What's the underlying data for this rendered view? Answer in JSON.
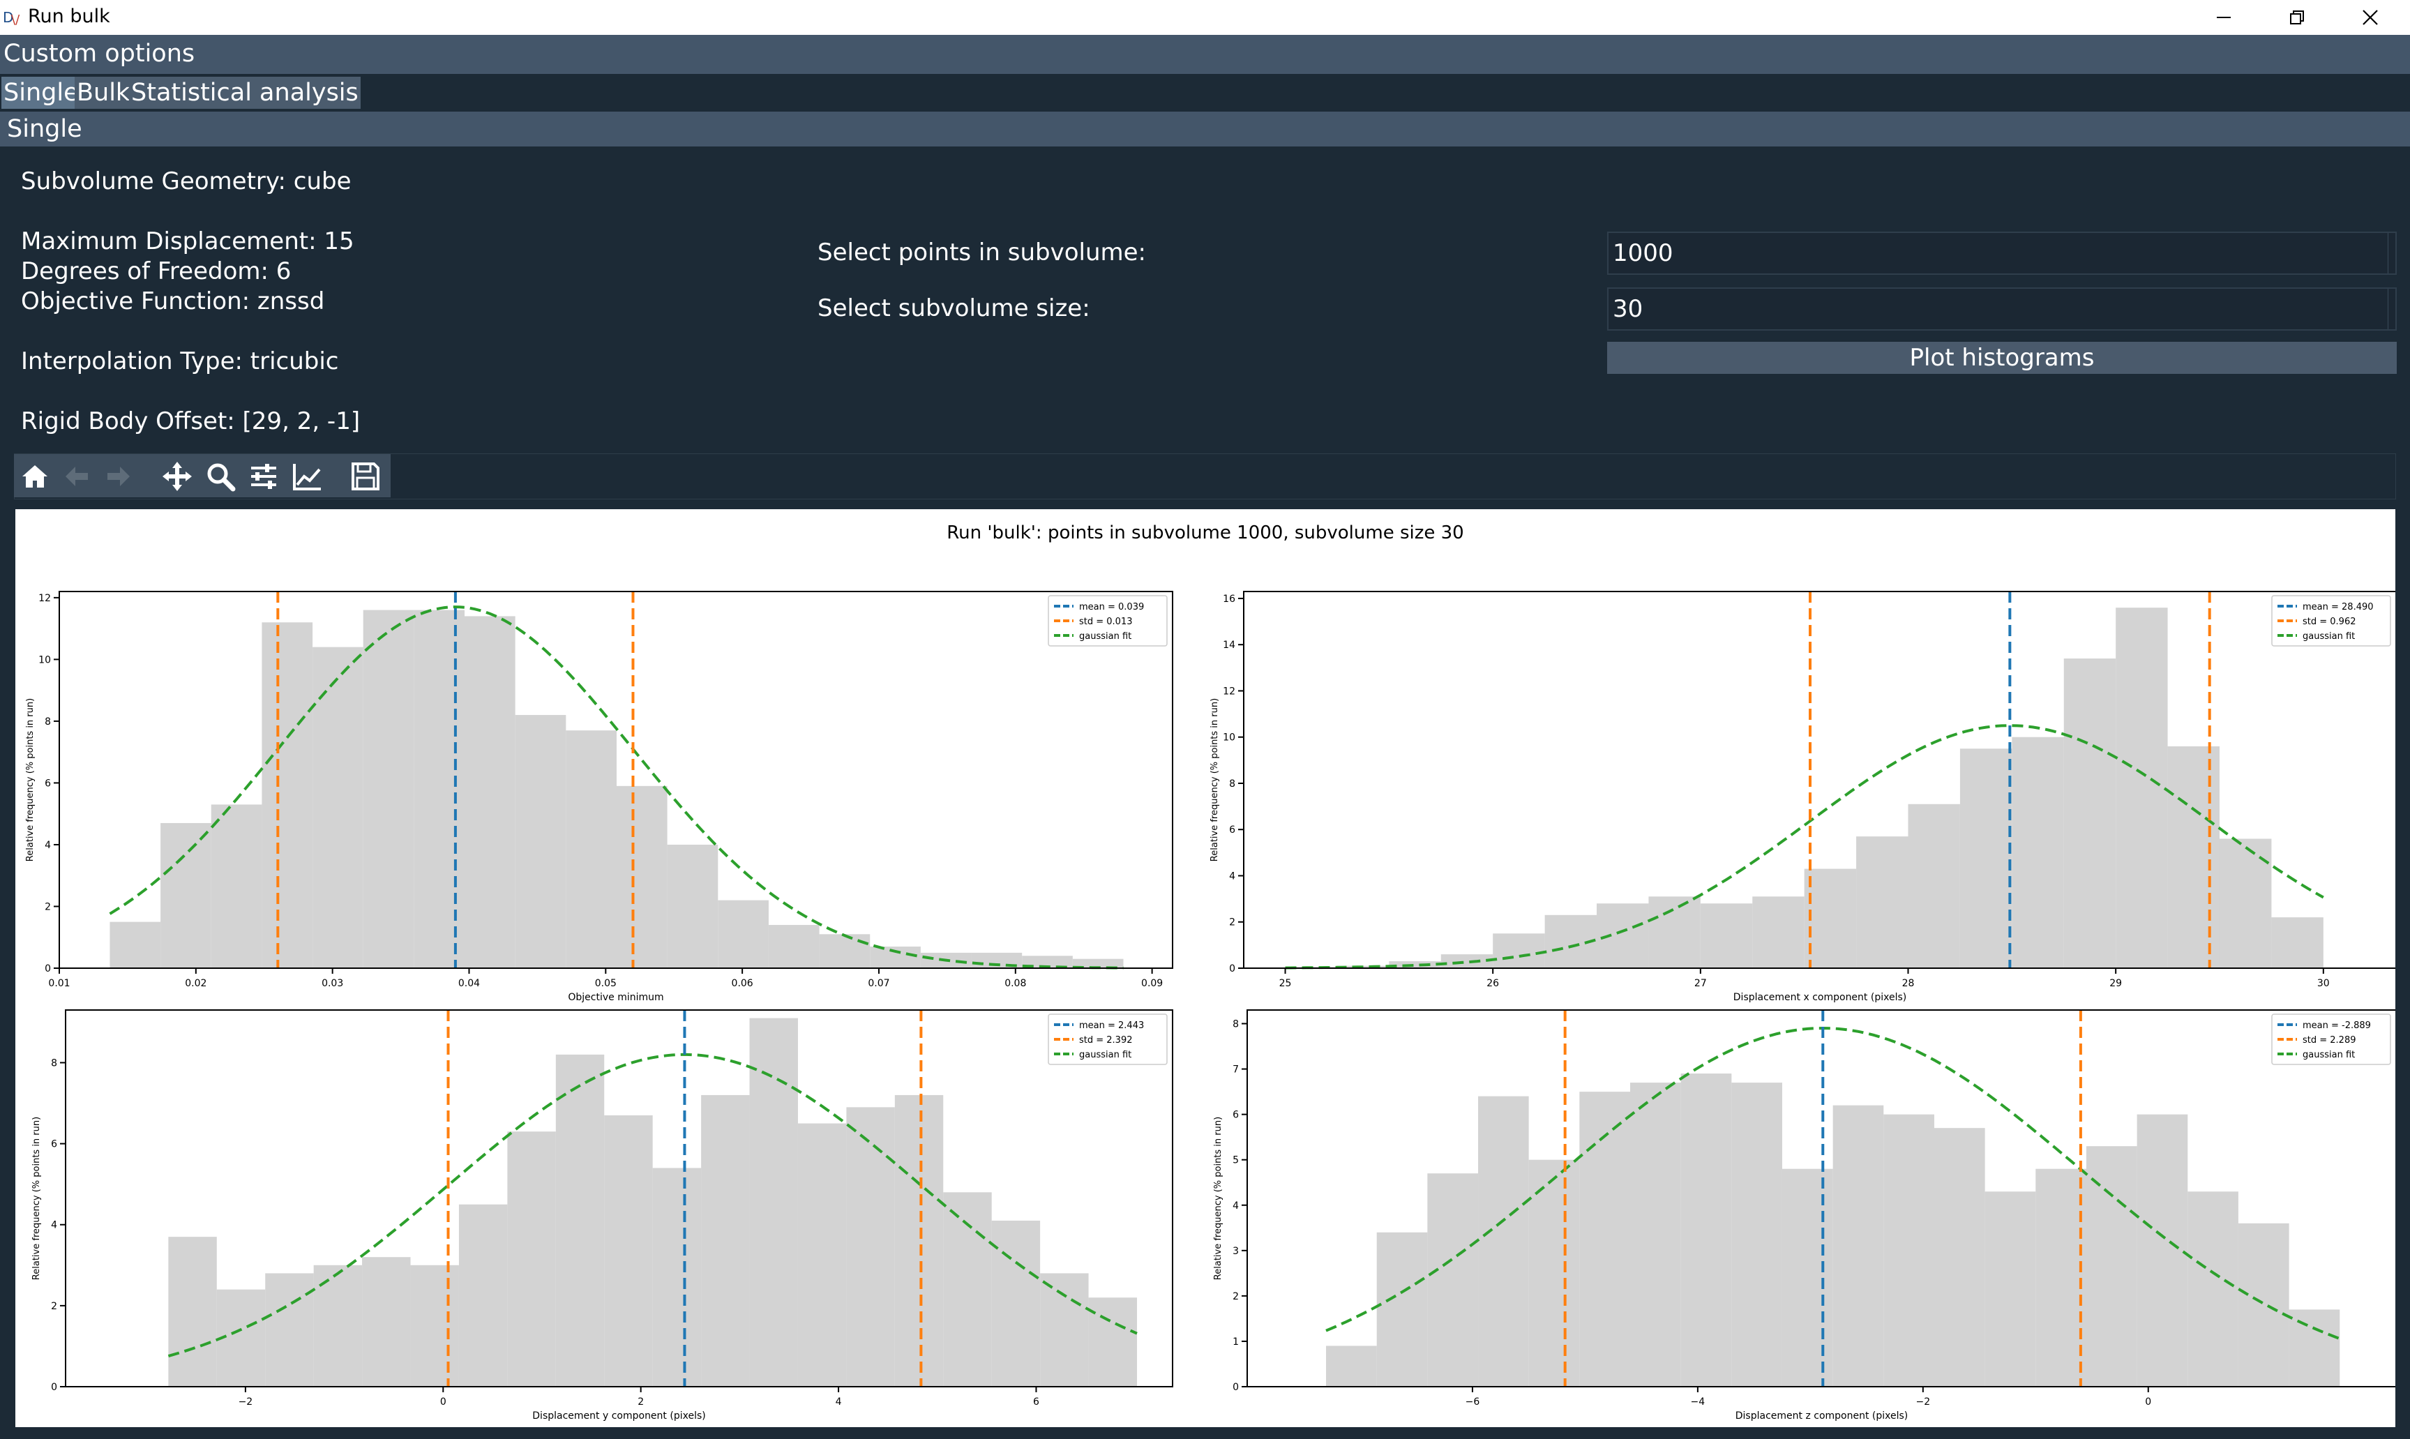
{
  "window": {
    "title": "Run bulk",
    "icon": "app-logo-icon",
    "controls": [
      "minimize-icon",
      "restore-icon",
      "close-icon"
    ]
  },
  "custom_options": {
    "label": "Custom options"
  },
  "tabs": [
    {
      "label": "Single",
      "active": true
    },
    {
      "label": "Bulk",
      "active": false
    },
    {
      "label": "Statistical analysis",
      "active": false
    }
  ],
  "section": {
    "label": "Single"
  },
  "info": {
    "geometry": "Subvolume Geometry: cube",
    "max_disp": "Maximum Displacement: 15",
    "dof": "Degrees of Freedom: 6",
    "objective": "Objective Function: znssd",
    "interp": "Interpolation Type: tricubic",
    "offset": "Rigid Body Offset: [29, 2, -1]"
  },
  "form": {
    "points_label": "Select points in subvolume:",
    "points_value": "1000",
    "size_label": "Select subvolume size:",
    "size_value": "30",
    "plot_button": "Plot histograms"
  },
  "toolbar": {
    "icons": [
      "home-icon",
      "back-arrow-icon",
      "forward-arrow-icon",
      "pan-icon",
      "zoom-icon",
      "configure-subplots-icon",
      "edit-axis-icon",
      "save-icon"
    ],
    "disabled": [
      "back-arrow-icon",
      "forward-arrow-icon"
    ]
  },
  "colors": {
    "hist": "#d3d3d3",
    "mean": "#1f77b4",
    "std": "#ff7f0e",
    "fit": "#2ca02c"
  },
  "chart_data": {
    "suptitle": "Run 'bulk': points in subvolume 1000, subvolume size 30",
    "legend_location": "upper right",
    "panels": [
      {
        "type": "bar",
        "xlabel": "Objective minimum",
        "ylabel": "Relative frequency (% points in run)",
        "xlim": [
          0.01,
          0.0915
        ],
        "ylim": [
          0,
          12.2
        ],
        "xticks": [
          0.01,
          0.02,
          0.03,
          0.04,
          0.05,
          0.06,
          0.07,
          0.08,
          0.09
        ],
        "xtick_labels": [
          "0.01",
          "0.02",
          "0.03",
          "0.04",
          "0.05",
          "0.06",
          "0.07",
          "0.08",
          "0.09"
        ],
        "yticks": [
          0,
          2,
          4,
          6,
          8,
          10,
          12
        ],
        "ytick_labels": [
          "0",
          "2",
          "4",
          "6",
          "8",
          "10",
          "12"
        ],
        "bin_edges": [
          0.0137,
          0.01741,
          0.02112,
          0.02483,
          0.02854,
          0.03225,
          0.03596,
          0.03967,
          0.04338,
          0.04709,
          0.0508,
          0.05451,
          0.05822,
          0.06193,
          0.06564,
          0.06935,
          0.07306,
          0.07677,
          0.08048,
          0.08419,
          0.0879
        ],
        "counts": [
          1.5,
          4.7,
          5.3,
          11.2,
          10.4,
          11.6,
          11.6,
          11.4,
          8.2,
          7.7,
          5.9,
          4.0,
          2.2,
          1.4,
          1.1,
          0.7,
          0.5,
          0.5,
          0.4,
          0.3
        ],
        "mean": 0.039,
        "std": 0.013,
        "fit_peak": 11.7,
        "legend": [
          "mean = 0.039",
          "std = 0.013",
          "gaussian fit"
        ]
      },
      {
        "type": "bar",
        "xlabel": "Displacement x component (pixels)",
        "ylabel": "Relative frequency (% points in run)",
        "xlim": [
          24.8,
          30.35
        ],
        "ylim": [
          0,
          16.3
        ],
        "xticks": [
          25,
          26,
          27,
          28,
          29,
          30
        ],
        "xtick_labels": [
          "25",
          "26",
          "27",
          "28",
          "29",
          "30"
        ],
        "yticks": [
          0,
          2,
          4,
          6,
          8,
          10,
          12,
          14,
          16
        ],
        "ytick_labels": [
          "0",
          "2",
          "4",
          "6",
          "8",
          "10",
          "12",
          "14",
          "16"
        ],
        "bin_edges": [
          25.0,
          25.25,
          25.5,
          25.75,
          26.0,
          26.25,
          26.5,
          26.75,
          27.0,
          27.25,
          27.5,
          27.75,
          28.0,
          28.25,
          28.5,
          28.75,
          29.0,
          29.25,
          29.5,
          29.75,
          30.0
        ],
        "counts": [
          0.05,
          0.1,
          0.3,
          0.6,
          1.5,
          2.3,
          2.8,
          3.1,
          2.8,
          3.1,
          4.3,
          5.7,
          7.1,
          9.5,
          10.0,
          13.4,
          15.6,
          9.6,
          5.6,
          2.2
        ],
        "mean": 28.49,
        "std": 0.962,
        "fit_peak": 10.5,
        "legend": [
          "mean = 28.490",
          "std = 0.962",
          "gaussian fit"
        ]
      },
      {
        "type": "bar",
        "xlabel": "Displacement y component (pixels)",
        "ylabel": "Relative frequency (% points in run)",
        "xlim": [
          -3.82,
          7.38
        ],
        "ylim": [
          0,
          9.3
        ],
        "xticks": [
          -2,
          0,
          2,
          4,
          6
        ],
        "xtick_labels": [
          "−2",
          "0",
          "2",
          "4",
          "6"
        ],
        "yticks": [
          0,
          2,
          4,
          6,
          8
        ],
        "ytick_labels": [
          "0",
          "2",
          "4",
          "6",
          "8"
        ],
        "bin_edges": [
          -2.78,
          -2.29,
          -1.8,
          -1.31,
          -0.82,
          -0.33,
          0.16,
          0.65,
          1.14,
          1.63,
          2.12,
          2.61,
          3.1,
          3.59,
          4.08,
          4.57,
          5.06,
          5.55,
          6.04,
          6.53,
          7.02
        ],
        "counts": [
          3.7,
          2.4,
          2.8,
          3.0,
          3.2,
          3.0,
          4.5,
          6.3,
          8.2,
          6.7,
          5.4,
          7.2,
          9.1,
          6.5,
          6.9,
          7.2,
          4.8,
          4.1,
          2.8,
          2.2
        ],
        "mean": 2.443,
        "std": 2.392,
        "fit_peak": 8.2,
        "legend": [
          "mean = 2.443",
          "std = 2.392",
          "gaussian fit"
        ]
      },
      {
        "type": "bar",
        "xlabel": "Displacement z component (pixels)",
        "ylabel": "Relative frequency (% points in run)",
        "xlim": [
          -8.0,
          2.2
        ],
        "ylim": [
          0,
          8.3
        ],
        "xticks": [
          -6,
          -4,
          -2,
          0
        ],
        "xtick_labels": [
          "−6",
          "−4",
          "−2",
          "0"
        ],
        "yticks": [
          0,
          1,
          2,
          3,
          4,
          5,
          6,
          7,
          8
        ],
        "ytick_labels": [
          "0",
          "1",
          "2",
          "3",
          "4",
          "5",
          "6",
          "7",
          "8"
        ],
        "bin_edges": [
          -7.3,
          -6.85,
          -6.4,
          -5.95,
          -5.5,
          -5.05,
          -4.6,
          -4.15,
          -3.7,
          -3.25,
          -2.8,
          -2.35,
          -1.9,
          -1.45,
          -1.0,
          -0.55,
          -0.1,
          0.35,
          0.8,
          1.25,
          1.7
        ],
        "counts": [
          0.9,
          3.4,
          4.7,
          6.4,
          5.0,
          6.5,
          6.7,
          6.9,
          6.7,
          4.8,
          6.2,
          6.0,
          5.7,
          4.3,
          4.8,
          5.3,
          6.0,
          4.3,
          3.6,
          1.7
        ],
        "mean": -2.889,
        "std": 2.289,
        "fit_peak": 7.9,
        "legend": [
          "mean = -2.889",
          "std = 2.289",
          "gaussian fit"
        ]
      }
    ]
  }
}
